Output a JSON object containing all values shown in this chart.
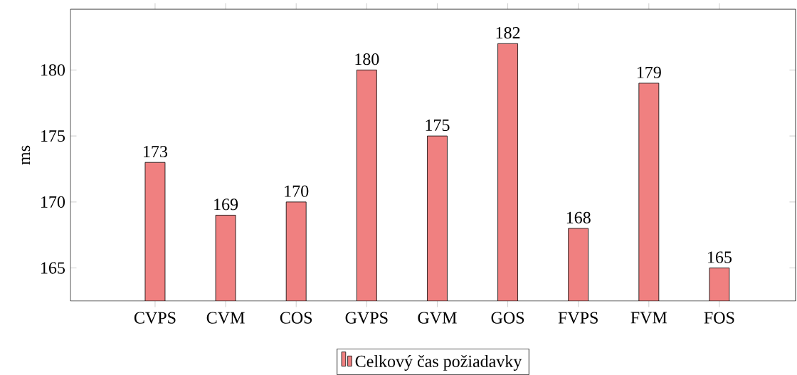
{
  "chart_data": {
    "type": "bar",
    "ylabel": "ms",
    "categories": [
      "CVPS",
      "CVM",
      "COS",
      "GVPS",
      "GVM",
      "GOS",
      "FVPS",
      "FVM",
      "FOS"
    ],
    "series": [
      {
        "name": "Celkový čas požiadavky",
        "color": "#f08080",
        "values": [
          173,
          169,
          170,
          180,
          175,
          182,
          168,
          179,
          165
        ]
      }
    ],
    "ylim": [
      162.5,
      184.6
    ],
    "yticks": [
      165,
      170,
      175,
      180
    ],
    "data_labels": true,
    "legend": "bottom",
    "grid": false
  }
}
